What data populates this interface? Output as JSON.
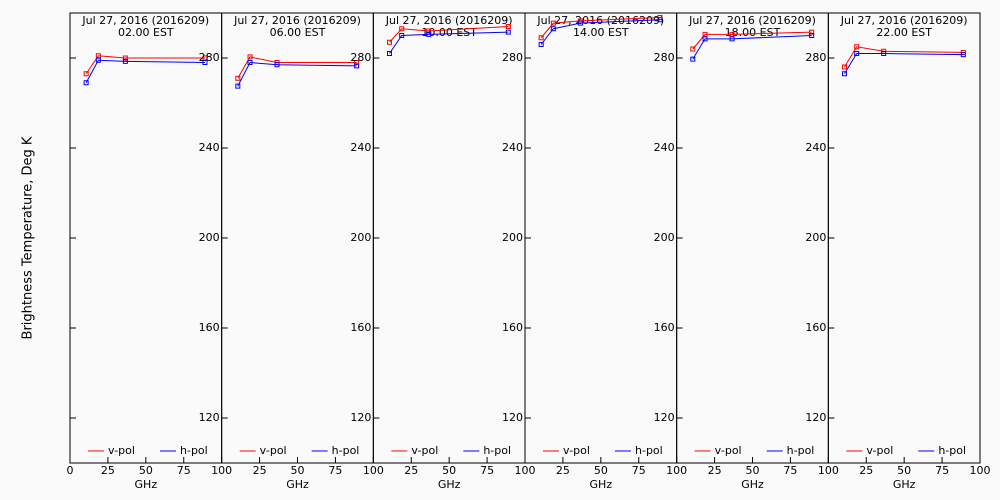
{
  "chart_data": [
    {
      "type": "line",
      "title": "Jul 27, 2016 (2016209)",
      "subtitle": "02.00 EST",
      "y_label": "Brightness Temperature, Deg K",
      "x_label": "GHz",
      "x": [
        10.65,
        18.7,
        36.5,
        89
      ],
      "xlim": [
        0,
        100
      ],
      "xticks": [
        0,
        25,
        50,
        75,
        100
      ],
      "ylim": [
        100,
        300
      ],
      "yticks": [
        120,
        160,
        200,
        240,
        280
      ],
      "series": [
        {
          "name": "v-pol",
          "color": "#ff0000",
          "values": [
            273,
            281,
            280,
            280
          ]
        },
        {
          "name": "h-pol",
          "color": "#0000ff",
          "values": [
            269,
            279,
            278.5,
            278
          ]
        }
      ]
    },
    {
      "type": "line",
      "title": "Jul 27, 2016 (2016209)",
      "subtitle": "06.00 EST",
      "x_label": "GHz",
      "x": [
        10.65,
        18.7,
        36.5,
        89
      ],
      "xlim": [
        0,
        100
      ],
      "xticks": [
        25,
        50,
        75,
        100
      ],
      "ylim": [
        100,
        300
      ],
      "yticks": [
        120,
        160,
        200,
        240,
        280
      ],
      "series": [
        {
          "name": "v-pol",
          "color": "#ff0000",
          "values": [
            271,
            280.5,
            278,
            278
          ]
        },
        {
          "name": "h-pol",
          "color": "#0000ff",
          "values": [
            267.5,
            278,
            277,
            276.5
          ]
        }
      ]
    },
    {
      "type": "line",
      "title": "Jul 27, 2016 (2016209)",
      "subtitle": "10.00 EST",
      "x_label": "GHz",
      "x": [
        10.65,
        18.7,
        36.5,
        89
      ],
      "xlim": [
        0,
        100
      ],
      "xticks": [
        25,
        50,
        75,
        100
      ],
      "ylim": [
        100,
        300
      ],
      "yticks": [
        120,
        160,
        200,
        240,
        280
      ],
      "series": [
        {
          "name": "v-pol",
          "color": "#ff0000",
          "values": [
            287,
            293,
            292,
            294
          ]
        },
        {
          "name": "h-pol",
          "color": "#0000ff",
          "values": [
            282,
            290,
            290.5,
            291.5
          ]
        }
      ]
    },
    {
      "type": "line",
      "title": "Jul 27, 2016 (2016209)",
      "subtitle": "14.00 EST",
      "x_label": "GHz",
      "x": [
        10.65,
        18.7,
        36.5,
        89
      ],
      "xlim": [
        0,
        100
      ],
      "xticks": [
        25,
        50,
        75,
        100
      ],
      "ylim": [
        100,
        300
      ],
      "yticks": [
        120,
        160,
        200,
        240,
        280
      ],
      "series": [
        {
          "name": "v-pol",
          "color": "#ff0000",
          "values": [
            289,
            295.5,
            296.5,
            298
          ]
        },
        {
          "name": "h-pol",
          "color": "#0000ff",
          "values": [
            286,
            293,
            295.5,
            297
          ]
        }
      ]
    },
    {
      "type": "line",
      "title": "Jul 27, 2016 (2016209)",
      "subtitle": "18.00 EST",
      "x_label": "GHz",
      "x": [
        10.65,
        18.7,
        36.5,
        89
      ],
      "xlim": [
        0,
        100
      ],
      "xticks": [
        25,
        50,
        75,
        100
      ],
      "ylim": [
        100,
        300
      ],
      "yticks": [
        120,
        160,
        200,
        240,
        280
      ],
      "series": [
        {
          "name": "v-pol",
          "color": "#ff0000",
          "values": [
            284,
            290.5,
            290.5,
            291.5
          ]
        },
        {
          "name": "h-pol",
          "color": "#0000ff",
          "values": [
            279.5,
            288.5,
            288.5,
            290
          ]
        }
      ]
    },
    {
      "type": "line",
      "title": "Jul 27, 2016 (2016209)",
      "subtitle": "22.00 EST",
      "x_label": "GHz",
      "x": [
        10.65,
        18.7,
        36.5,
        89
      ],
      "xlim": [
        0,
        100
      ],
      "xticks": [
        25,
        50,
        75,
        100
      ],
      "ylim": [
        100,
        300
      ],
      "yticks": [
        120,
        160,
        200,
        240,
        280
      ],
      "series": [
        {
          "name": "v-pol",
          "color": "#ff0000",
          "values": [
            276,
            285,
            283,
            282.5
          ]
        },
        {
          "name": "h-pol",
          "color": "#0000ff",
          "values": [
            273,
            282,
            282,
            281.5
          ]
        }
      ]
    }
  ]
}
